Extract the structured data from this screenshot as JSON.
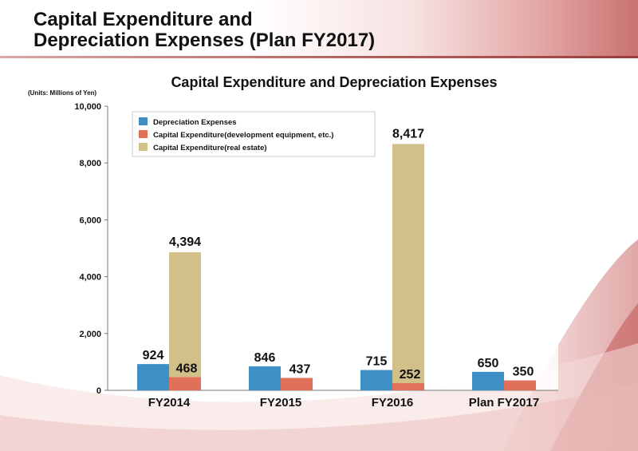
{
  "slide": {
    "title_line1": "Capital Expenditure and",
    "title_line2": "Depreciation Expenses (Plan FY2017)"
  },
  "chart_data": {
    "type": "bar",
    "title": "Capital Expenditure and Depreciation Expenses",
    "units": "(Units: Millions of Yen)",
    "categories": [
      "FY2014",
      "FY2015",
      "FY2016",
      "Plan FY2017"
    ],
    "series": [
      {
        "name": "Depreciation Expenses",
        "color": "#3d8fc6",
        "values": [
          924,
          846,
          715,
          650
        ],
        "labels": [
          "924",
          "846",
          "715",
          "650"
        ]
      },
      {
        "name": "Capital Expenditure(development equipment, etc.)",
        "color": "#e0705a",
        "values": [
          468,
          437,
          252,
          350
        ],
        "labels": [
          "468",
          "437",
          "252",
          "350"
        ]
      },
      {
        "name": "Capital Expenditure(real estate)",
        "color": "#d2c08a",
        "values": [
          4394,
          null,
          8417,
          null
        ],
        "labels": [
          "4,394",
          null,
          "8,417",
          null
        ]
      }
    ],
    "ylim": [
      0,
      10000
    ],
    "yticks": [
      0,
      2000,
      4000,
      6000,
      8000,
      10000
    ],
    "ytick_labels": [
      "0",
      "2,000",
      "4,000",
      "6,000",
      "8,000",
      "10,000"
    ],
    "legend": "top-left"
  }
}
